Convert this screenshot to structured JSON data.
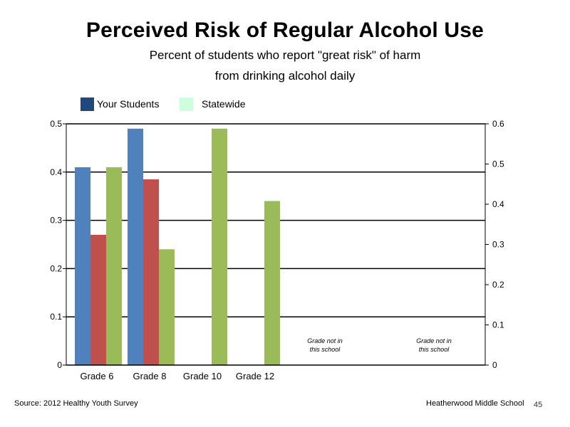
{
  "header": {
    "title": "Perceived Risk of Regular Alcohol Use",
    "subtitle_line1": "Percent of students who report \"great risk\" of harm",
    "subtitle_line2": "from drinking alcohol daily"
  },
  "legend": {
    "items": [
      {
        "label": "Your Students",
        "color": "#1F497D"
      },
      {
        "label": "Statewide",
        "color": "#CCFFDD"
      }
    ]
  },
  "footer": {
    "source": "Source: 2012 Healthy Youth Survey",
    "school": "Heatherwood Middle  School",
    "slide_number": "45"
  },
  "chart_data": {
    "type": "bar",
    "categories": [
      "Grade 6",
      "Grade 8",
      "Grade 10",
      "Grade 12",
      "",
      ""
    ],
    "series": [
      {
        "color": "#4F81BD",
        "axis": "left",
        "values": [
          0.41,
          0.49,
          null,
          null,
          null,
          null
        ]
      },
      {
        "color": "#C0504D",
        "axis": "left",
        "values": [
          0.27,
          0.385,
          null,
          null,
          null,
          null
        ]
      },
      {
        "color": "#9BBB59",
        "axis": "left",
        "values": [
          0.41,
          0.24,
          0.49,
          0.34,
          null,
          null
        ]
      }
    ],
    "y_left": {
      "ylim": [
        0,
        0.5
      ],
      "ticks": [
        "0",
        "0.1",
        "0.2",
        "0.3",
        "0.4",
        "0.5"
      ]
    },
    "y_right": {
      "ylim": [
        0,
        0.6
      ],
      "ticks": [
        "0",
        "0.1",
        "0.2",
        "0.3",
        "0.4",
        "0.5",
        "0.6"
      ]
    },
    "grid": true,
    "annotations": [
      {
        "category_index": 4,
        "line1": "Grade not in",
        "line2": "this school"
      },
      {
        "category_index": 5,
        "line1": "Grade not in",
        "line2": "this school"
      }
    ]
  }
}
